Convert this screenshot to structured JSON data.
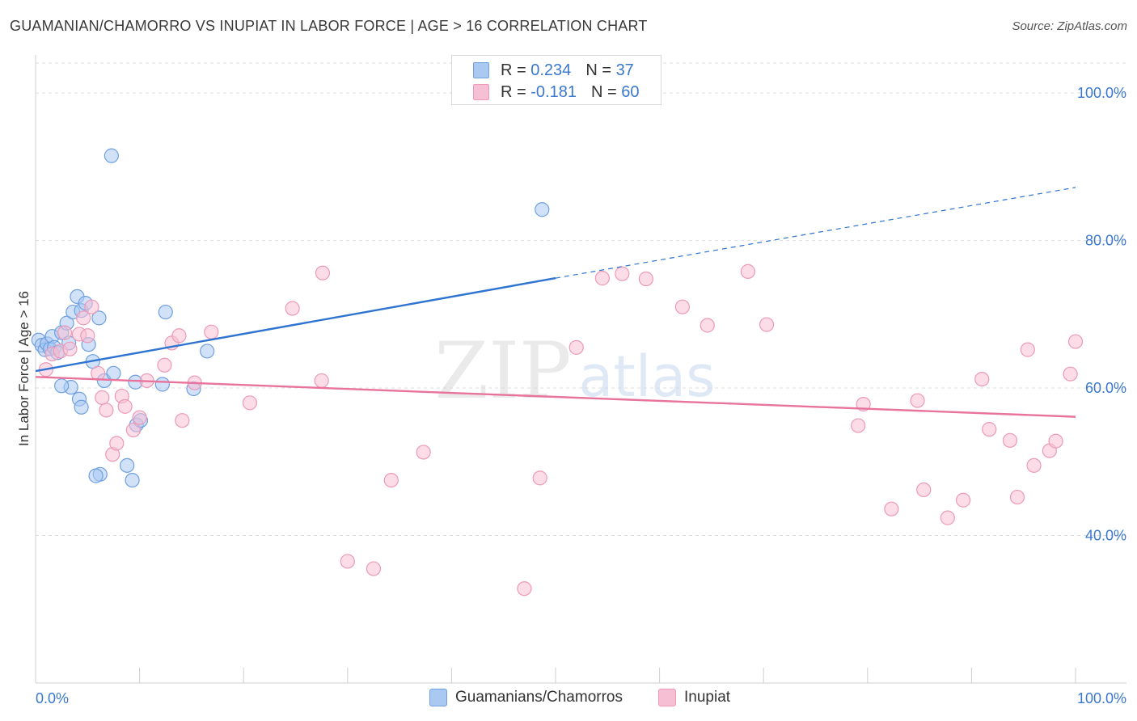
{
  "title": "GUAMANIAN/CHAMORRO VS INUPIAT IN LABOR FORCE | AGE > 16 CORRELATION CHART",
  "source": "Source: ZipAtlas.com",
  "watermark": {
    "zip": "ZIP",
    "atlas": "atlas"
  },
  "legend_top": [
    {
      "r_label": "R =",
      "r_value": "0.234",
      "n_label": "N =",
      "n_value": "37"
    },
    {
      "r_label": "R =",
      "r_value": "-0.181",
      "n_label": "N =",
      "n_value": "60"
    }
  ],
  "legend_bottom": [
    "Guamanians/Chamorros",
    "Inupiat"
  ],
  "colors": {
    "blue_fill": "#a9c9f2",
    "blue_stroke": "#6fa0e0",
    "blue_line": "#2f74d0",
    "pink_fill": "#f7bfd3",
    "pink_stroke": "#ec9ab8",
    "pink_line": "#e8739c",
    "tick_text": "#3a78d0"
  },
  "chart_data": {
    "type": "scatter",
    "title": "GUAMANIAN/CHAMORRO VS INUPIAT IN LABOR FORCE | AGE > 16 CORRELATION CHART",
    "xlabel": "",
    "ylabel": "In Labor Force | Age > 16",
    "xlim": [
      0,
      100
    ],
    "ylim": [
      20,
      104
    ],
    "x_tick_labels": [
      "0.0%",
      "100.0%"
    ],
    "y_ticks": [
      {
        "value": 40,
        "label": "40.0%"
      },
      {
        "value": 60,
        "label": "60.0%"
      },
      {
        "value": 80,
        "label": "80.0%"
      },
      {
        "value": 100,
        "label": "100.0%"
      }
    ],
    "grid": true,
    "series": [
      {
        "name": "Guamanians/Chamorros",
        "R": 0.234,
        "N": 37,
        "trend": {
          "x0": 0,
          "y0": 62.3,
          "x1": 50,
          "y1": 74.9,
          "dashed_to_x": 100,
          "dashed_to_y": 87.2
        },
        "points": [
          [
            0.3,
            66.5
          ],
          [
            0.6,
            65.8
          ],
          [
            0.9,
            65.2
          ],
          [
            1.1,
            66.0
          ],
          [
            1.4,
            65.3
          ],
          [
            1.6,
            67.0
          ],
          [
            1.8,
            65.5
          ],
          [
            2.1,
            64.8
          ],
          [
            2.5,
            67.5
          ],
          [
            3.0,
            68.8
          ],
          [
            3.2,
            66.1
          ],
          [
            3.6,
            70.3
          ],
          [
            4.0,
            72.4
          ],
          [
            4.4,
            70.5
          ],
          [
            4.8,
            71.5
          ],
          [
            5.1,
            65.9
          ],
          [
            5.5,
            63.6
          ],
          [
            6.1,
            69.5
          ],
          [
            6.6,
            61.0
          ],
          [
            7.5,
            62.0
          ],
          [
            8.8,
            49.5
          ],
          [
            9.3,
            47.5
          ],
          [
            9.7,
            55.0
          ],
          [
            6.2,
            48.3
          ],
          [
            5.8,
            48.1
          ],
          [
            4.2,
            58.5
          ],
          [
            4.4,
            57.4
          ],
          [
            3.4,
            60.1
          ],
          [
            2.5,
            60.3
          ],
          [
            7.3,
            91.5
          ],
          [
            10.1,
            55.6
          ],
          [
            9.6,
            60.8
          ],
          [
            12.5,
            70.3
          ],
          [
            15.2,
            59.9
          ],
          [
            16.5,
            65.0
          ],
          [
            12.2,
            60.5
          ],
          [
            48.7,
            84.2
          ]
        ]
      },
      {
        "name": "Inupiat",
        "R": -0.181,
        "N": 60,
        "trend": {
          "x0": 0,
          "y0": 61.5,
          "x1": 100,
          "y1": 56.1
        },
        "points": [
          [
            1.0,
            62.5
          ],
          [
            1.6,
            64.6
          ],
          [
            2.4,
            65.0
          ],
          [
            2.8,
            67.5
          ],
          [
            3.3,
            65.3
          ],
          [
            4.2,
            67.3
          ],
          [
            4.6,
            69.5
          ],
          [
            5.0,
            67.1
          ],
          [
            5.4,
            71.0
          ],
          [
            6.0,
            62.0
          ],
          [
            6.4,
            58.7
          ],
          [
            6.8,
            57.0
          ],
          [
            7.4,
            51.0
          ],
          [
            7.8,
            52.5
          ],
          [
            8.3,
            58.9
          ],
          [
            8.6,
            57.5
          ],
          [
            9.4,
            54.3
          ],
          [
            10.0,
            56.0
          ],
          [
            10.7,
            61.0
          ],
          [
            12.4,
            63.1
          ],
          [
            13.1,
            66.1
          ],
          [
            13.8,
            67.1
          ],
          [
            14.1,
            55.6
          ],
          [
            15.3,
            60.7
          ],
          [
            16.9,
            67.6
          ],
          [
            20.6,
            58.0
          ],
          [
            24.7,
            70.8
          ],
          [
            27.5,
            61.0
          ],
          [
            27.6,
            75.6
          ],
          [
            30.0,
            36.5
          ],
          [
            32.5,
            35.5
          ],
          [
            34.2,
            47.5
          ],
          [
            37.3,
            51.3
          ],
          [
            47.0,
            32.8
          ],
          [
            48.5,
            47.8
          ],
          [
            52.0,
            65.5
          ],
          [
            54.5,
            74.9
          ],
          [
            56.4,
            75.5
          ],
          [
            58.7,
            74.8
          ],
          [
            62.2,
            71.0
          ],
          [
            64.6,
            68.5
          ],
          [
            68.5,
            75.8
          ],
          [
            70.3,
            68.6
          ],
          [
            79.1,
            54.9
          ],
          [
            79.6,
            57.8
          ],
          [
            82.3,
            43.6
          ],
          [
            84.8,
            58.3
          ],
          [
            85.4,
            46.2
          ],
          [
            87.7,
            42.4
          ],
          [
            89.2,
            44.8
          ],
          [
            91.0,
            61.2
          ],
          [
            91.7,
            54.4
          ],
          [
            93.7,
            52.9
          ],
          [
            94.4,
            45.2
          ],
          [
            95.4,
            65.2
          ],
          [
            96.0,
            49.5
          ],
          [
            97.5,
            51.5
          ],
          [
            98.1,
            52.8
          ],
          [
            99.5,
            61.9
          ],
          [
            100.0,
            66.3
          ]
        ]
      }
    ]
  }
}
